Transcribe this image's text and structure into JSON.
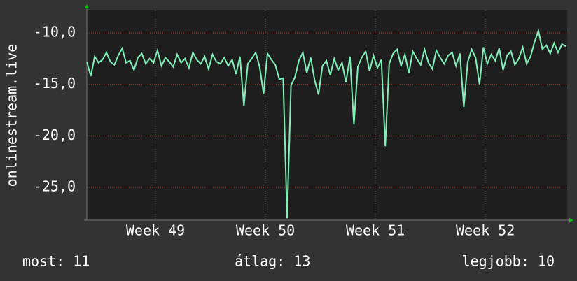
{
  "chart_data": {
    "type": "line",
    "y_label": "onlinestream.live",
    "x": [
      0,
      0.25,
      0.5,
      0.75,
      1,
      1.25,
      1.5,
      1.75,
      2,
      2.25,
      2.5,
      2.75,
      3,
      3.25,
      3.5,
      3.75,
      4,
      4.25,
      4.5,
      4.75,
      5,
      5.25,
      5.5,
      5.75,
      6,
      6.25,
      6.5,
      6.75,
      7,
      7.25,
      7.5,
      7.75,
      8,
      8.25,
      8.5,
      8.75,
      9,
      9.25,
      9.5,
      9.75,
      10,
      10.25,
      10.5,
      10.75,
      11,
      11.25,
      11.5,
      11.75,
      12,
      12.25,
      12.5,
      12.75,
      13,
      13.25,
      13.5,
      13.75,
      14,
      14.25,
      14.5,
      14.75,
      15,
      15.25,
      15.5,
      15.75,
      16,
      16.25,
      16.5,
      16.75,
      17,
      17.25,
      17.5,
      17.75,
      18,
      18.25,
      18.5,
      18.75,
      19,
      19.25,
      19.5,
      19.75,
      20,
      20.25,
      20.5,
      20.75,
      21,
      21.25,
      21.5,
      21.75,
      22,
      22.25,
      22.5,
      22.75,
      23,
      23.25,
      23.5,
      23.75,
      24,
      24.25,
      24.5,
      24.75,
      25,
      25.25,
      25.5,
      25.75,
      26,
      26.25,
      26.5,
      26.75,
      27,
      27.25,
      27.5,
      27.75,
      28,
      28.25,
      28.5,
      28.75,
      29,
      29.25,
      29.5,
      29.75,
      30,
      30.25,
      30.5
    ],
    "series": [
      {
        "color": "#80f0b8",
        "values": [
          -12.8,
          -14.2,
          -12.3,
          -12.9,
          -12.6,
          -11.9,
          -12.8,
          -13.1,
          -12.2,
          -11.5,
          -12.9,
          -12.7,
          -13.6,
          -12.4,
          -12.0,
          -13.0,
          -12.5,
          -12.9,
          -11.7,
          -13.2,
          -12.4,
          -12.8,
          -13.3,
          -12.1,
          -12.9,
          -12.5,
          -13.4,
          -11.9,
          -12.6,
          -13.0,
          -12.3,
          -13.5,
          -12.1,
          -12.8,
          -13.0,
          -12.4,
          -13.2,
          -12.6,
          -14.0,
          -12.3,
          -17.1,
          -13.0,
          -12.5,
          -11.9,
          -13.3,
          -15.9,
          -12.0,
          -12.6,
          -13.1,
          -14.5,
          -14.4,
          -28.0,
          -15.1,
          -14.3,
          -12.7,
          -11.9,
          -13.9,
          -12.4,
          -14.6,
          -16.0,
          -13.2,
          -12.7,
          -14.1,
          -12.5,
          -13.6,
          -12.9,
          -14.8,
          -12.3,
          -18.9,
          -13.3,
          -12.4,
          -11.8,
          -13.7,
          -12.2,
          -13.4,
          -12.6,
          -21.0,
          -13.0,
          -12.0,
          -11.6,
          -13.2,
          -12.1,
          -13.9,
          -11.8,
          -12.5,
          -13.1,
          -11.6,
          -12.9,
          -13.5,
          -11.7,
          -12.4,
          -13.0,
          -12.2,
          -11.9,
          -13.2,
          -12.0,
          -17.2,
          -12.8,
          -11.6,
          -12.4,
          -15.0,
          -11.4,
          -13.0,
          -12.1,
          -12.7,
          -11.5,
          -13.6,
          -12.2,
          -11.8,
          -13.1,
          -12.5,
          -11.4,
          -13.0,
          -12.3,
          -10.9,
          -9.8,
          -11.6,
          -11.2,
          -12.0,
          -11.0,
          -11.9,
          -11.1,
          -11.3
        ]
      }
    ],
    "xlim": [
      0,
      30.58
    ],
    "xticks": [
      {
        "value": 4.37,
        "label": "Week 49"
      },
      {
        "value": 11.37,
        "label": "Week 50"
      },
      {
        "value": 18.37,
        "label": "Week 51"
      },
      {
        "value": 25.37,
        "label": "Week 52"
      }
    ],
    "ylim": [
      -28.18,
      -7.83
    ],
    "yticks": [
      {
        "value": -10,
        "label": "-10,0"
      },
      {
        "value": -15,
        "label": "-15,0"
      },
      {
        "value": -20,
        "label": "-20,0"
      },
      {
        "value": -25,
        "label": "-25,0"
      }
    ],
    "grid": true,
    "stats": [
      "most: 11",
      "átlag: 13",
      "legjobb: 10"
    ]
  }
}
